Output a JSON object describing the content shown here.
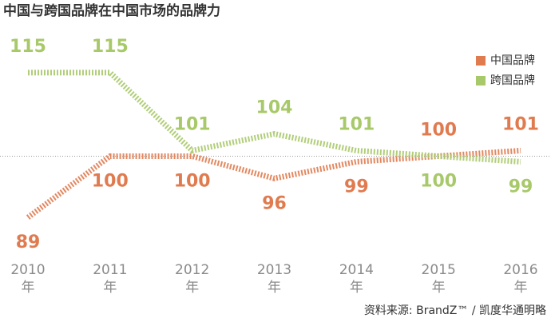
{
  "chart_data": {
    "type": "line",
    "title": "中国与跨国品牌在中国市场的品牌力",
    "categories": [
      "2010年",
      "2011年",
      "2012年",
      "2013年",
      "2014年",
      "2015年",
      "2016年"
    ],
    "series": [
      {
        "name": "中国品牌",
        "color": "#e07b4f",
        "values": [
          89,
          100,
          100,
          96,
          99,
          100,
          101
        ]
      },
      {
        "name": "跨国品牌",
        "color": "#a8c96a",
        "values": [
          115,
          115,
          101,
          104,
          101,
          100,
          99
        ]
      }
    ],
    "ylim": [
      85,
      118
    ],
    "reference_line": 100,
    "legend": "upper right",
    "source": "资料来源: BrandZ™ / 凯度华通明略"
  }
}
